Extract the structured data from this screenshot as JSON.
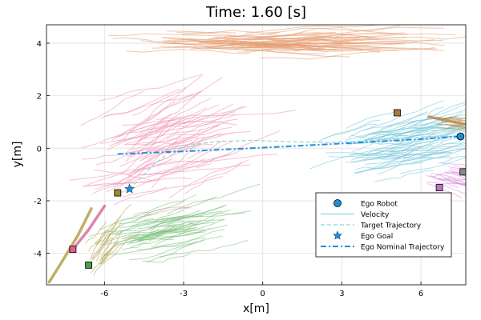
{
  "chart_data": {
    "type": "line",
    "title": "Time: 1.60 [s]",
    "xlabel": "x[m]",
    "ylabel": "y[m]",
    "xlim": [
      -8.2,
      7.7
    ],
    "ylim": [
      -5.2,
      4.7
    ],
    "xticks": [
      -6,
      -3,
      0,
      3,
      6
    ],
    "yticks": [
      -4,
      -2,
      0,
      2,
      4
    ],
    "xtick_labels": [
      "-6",
      "-3",
      "0",
      "3",
      "6"
    ],
    "ytick_labels": [
      "-4",
      "-2",
      "0",
      "2",
      "4"
    ],
    "grid": true,
    "legend_position": "bottom-right",
    "legend": [
      {
        "label": "Ego Robot",
        "kind": "circle",
        "color": "#1f8fd9"
      },
      {
        "label": "Velocity",
        "kind": "line",
        "color": "#8fd4e2"
      },
      {
        "label": "Target Trajectory",
        "kind": "dash",
        "color": "#8fd4e2"
      },
      {
        "label": "Ego Goal",
        "kind": "star",
        "color": "#1f8fd9"
      },
      {
        "label": "Ego Nominal Trajectory",
        "kind": "dashdot",
        "color": "#1f8fd9"
      }
    ],
    "ego_robot": {
      "x": 7.5,
      "y": 0.45,
      "color": "#1f8fd9"
    },
    "ego_goal": {
      "x": -5.05,
      "y": -1.55,
      "color": "#1f8fd9"
    },
    "ego_nominal_trajectory": {
      "color": "#1f8fd9",
      "x": [
        -5.5,
        -3.0,
        0.0,
        3.0,
        6.0,
        7.5
      ],
      "y": [
        -0.22,
        -0.12,
        0.02,
        0.18,
        0.35,
        0.45
      ]
    },
    "target_trajectory": {
      "color": "#8fd4e2",
      "x": [
        -5.05,
        -4.6,
        -4.1,
        -3.6,
        -2.9,
        -1.8,
        -0.4,
        1.0,
        2.4,
        3.8,
        5.2,
        6.4,
        7.5
      ],
      "y": [
        -1.55,
        -1.1,
        -0.6,
        -0.2,
        0.1,
        0.25,
        0.3,
        0.25,
        0.22,
        0.28,
        0.38,
        0.45,
        0.45
      ]
    },
    "agents": [
      {
        "name": "orange",
        "color": "#e59a6e",
        "x": 7.6,
        "y": 4.2,
        "cx": -1.5,
        "cy": 4.0,
        "sx": 5.5,
        "sy": 0.6,
        "n": 60,
        "len": 6.5,
        "ang": 0.0,
        "spread": 0.15
      },
      {
        "name": "cyan",
        "color": "#73c6d9",
        "x": 7.3,
        "y": -0.6,
        "cx": 4.2,
        "cy": 0.0,
        "sx": 3.2,
        "sy": 1.5,
        "n": 70,
        "len": 4.0,
        "ang": 0.3,
        "spread": 0.6
      },
      {
        "name": "pink",
        "color": "#ee8fb0",
        "x": -7.2,
        "y": -3.85,
        "cx": -5.0,
        "cy": -0.5,
        "sx": 3.0,
        "sy": 2.8,
        "n": 70,
        "len": 4.5,
        "ang": 0.5,
        "spread": 0.9
      },
      {
        "name": "green",
        "color": "#7cc07c",
        "x": -6.6,
        "y": -4.45,
        "cx": -4.8,
        "cy": -3.5,
        "sx": 2.2,
        "sy": 1.2,
        "n": 50,
        "len": 3.5,
        "ang": 0.4,
        "spread": 0.5
      },
      {
        "name": "brown",
        "color": "#b5a04a",
        "x": -5.5,
        "y": -1.7,
        "cx": -6.3,
        "cy": -4.2,
        "sx": 1.0,
        "sy": 0.9,
        "n": 20,
        "len": 2.5,
        "ang": 1.1,
        "spread": 0.3
      },
      {
        "name": "magenta",
        "color": "#d98fd9",
        "x": 6.7,
        "y": -1.5,
        "cx": 6.8,
        "cy": -1.0,
        "sx": 1.0,
        "sy": 0.6,
        "n": 25,
        "len": 2.5,
        "ang": -0.3,
        "spread": 0.4
      },
      {
        "name": "brown-right",
        "color": "#b37a33",
        "x": 5.1,
        "y": 1.35,
        "cx": 6.8,
        "cy": 1.0,
        "sx": 0.8,
        "sy": 0.4,
        "n": 10,
        "len": 1.5,
        "ang": -0.2,
        "spread": 0.2
      }
    ],
    "agent_markers": [
      {
        "name": "brown-right-square",
        "color": "#a87a3a",
        "x": 5.1,
        "y": 1.35
      },
      {
        "name": "olive-square",
        "color": "#9a8a30",
        "x": -5.5,
        "y": -1.7
      },
      {
        "name": "pink-square",
        "color": "#e06090",
        "x": -7.2,
        "y": -3.85
      },
      {
        "name": "green-square",
        "color": "#4aa04a",
        "x": -6.6,
        "y": -4.45
      },
      {
        "name": "magenta-square",
        "color": "#c070c8",
        "x": 6.7,
        "y": -1.5
      },
      {
        "name": "gray-square",
        "color": "#8a8a8a",
        "x": 7.6,
        "y": -0.9
      }
    ],
    "agent_thick_paths": [
      {
        "name": "brown-right-path",
        "color": "#b88a4a",
        "x": [
          6.3,
          7.0,
          7.7
        ],
        "y": [
          1.2,
          1.05,
          0.9
        ]
      },
      {
        "name": "olive-path",
        "color": "#b5a04a",
        "x": [
          -8.1,
          -7.6,
          -7.0,
          -6.5
        ],
        "y": [
          -5.1,
          -4.3,
          -3.3,
          -2.3
        ]
      },
      {
        "name": "pink-path",
        "color": "#d8709a",
        "x": [
          -7.2,
          -6.6,
          -6.0
        ],
        "y": [
          -3.85,
          -3.1,
          -2.2
        ]
      }
    ]
  }
}
